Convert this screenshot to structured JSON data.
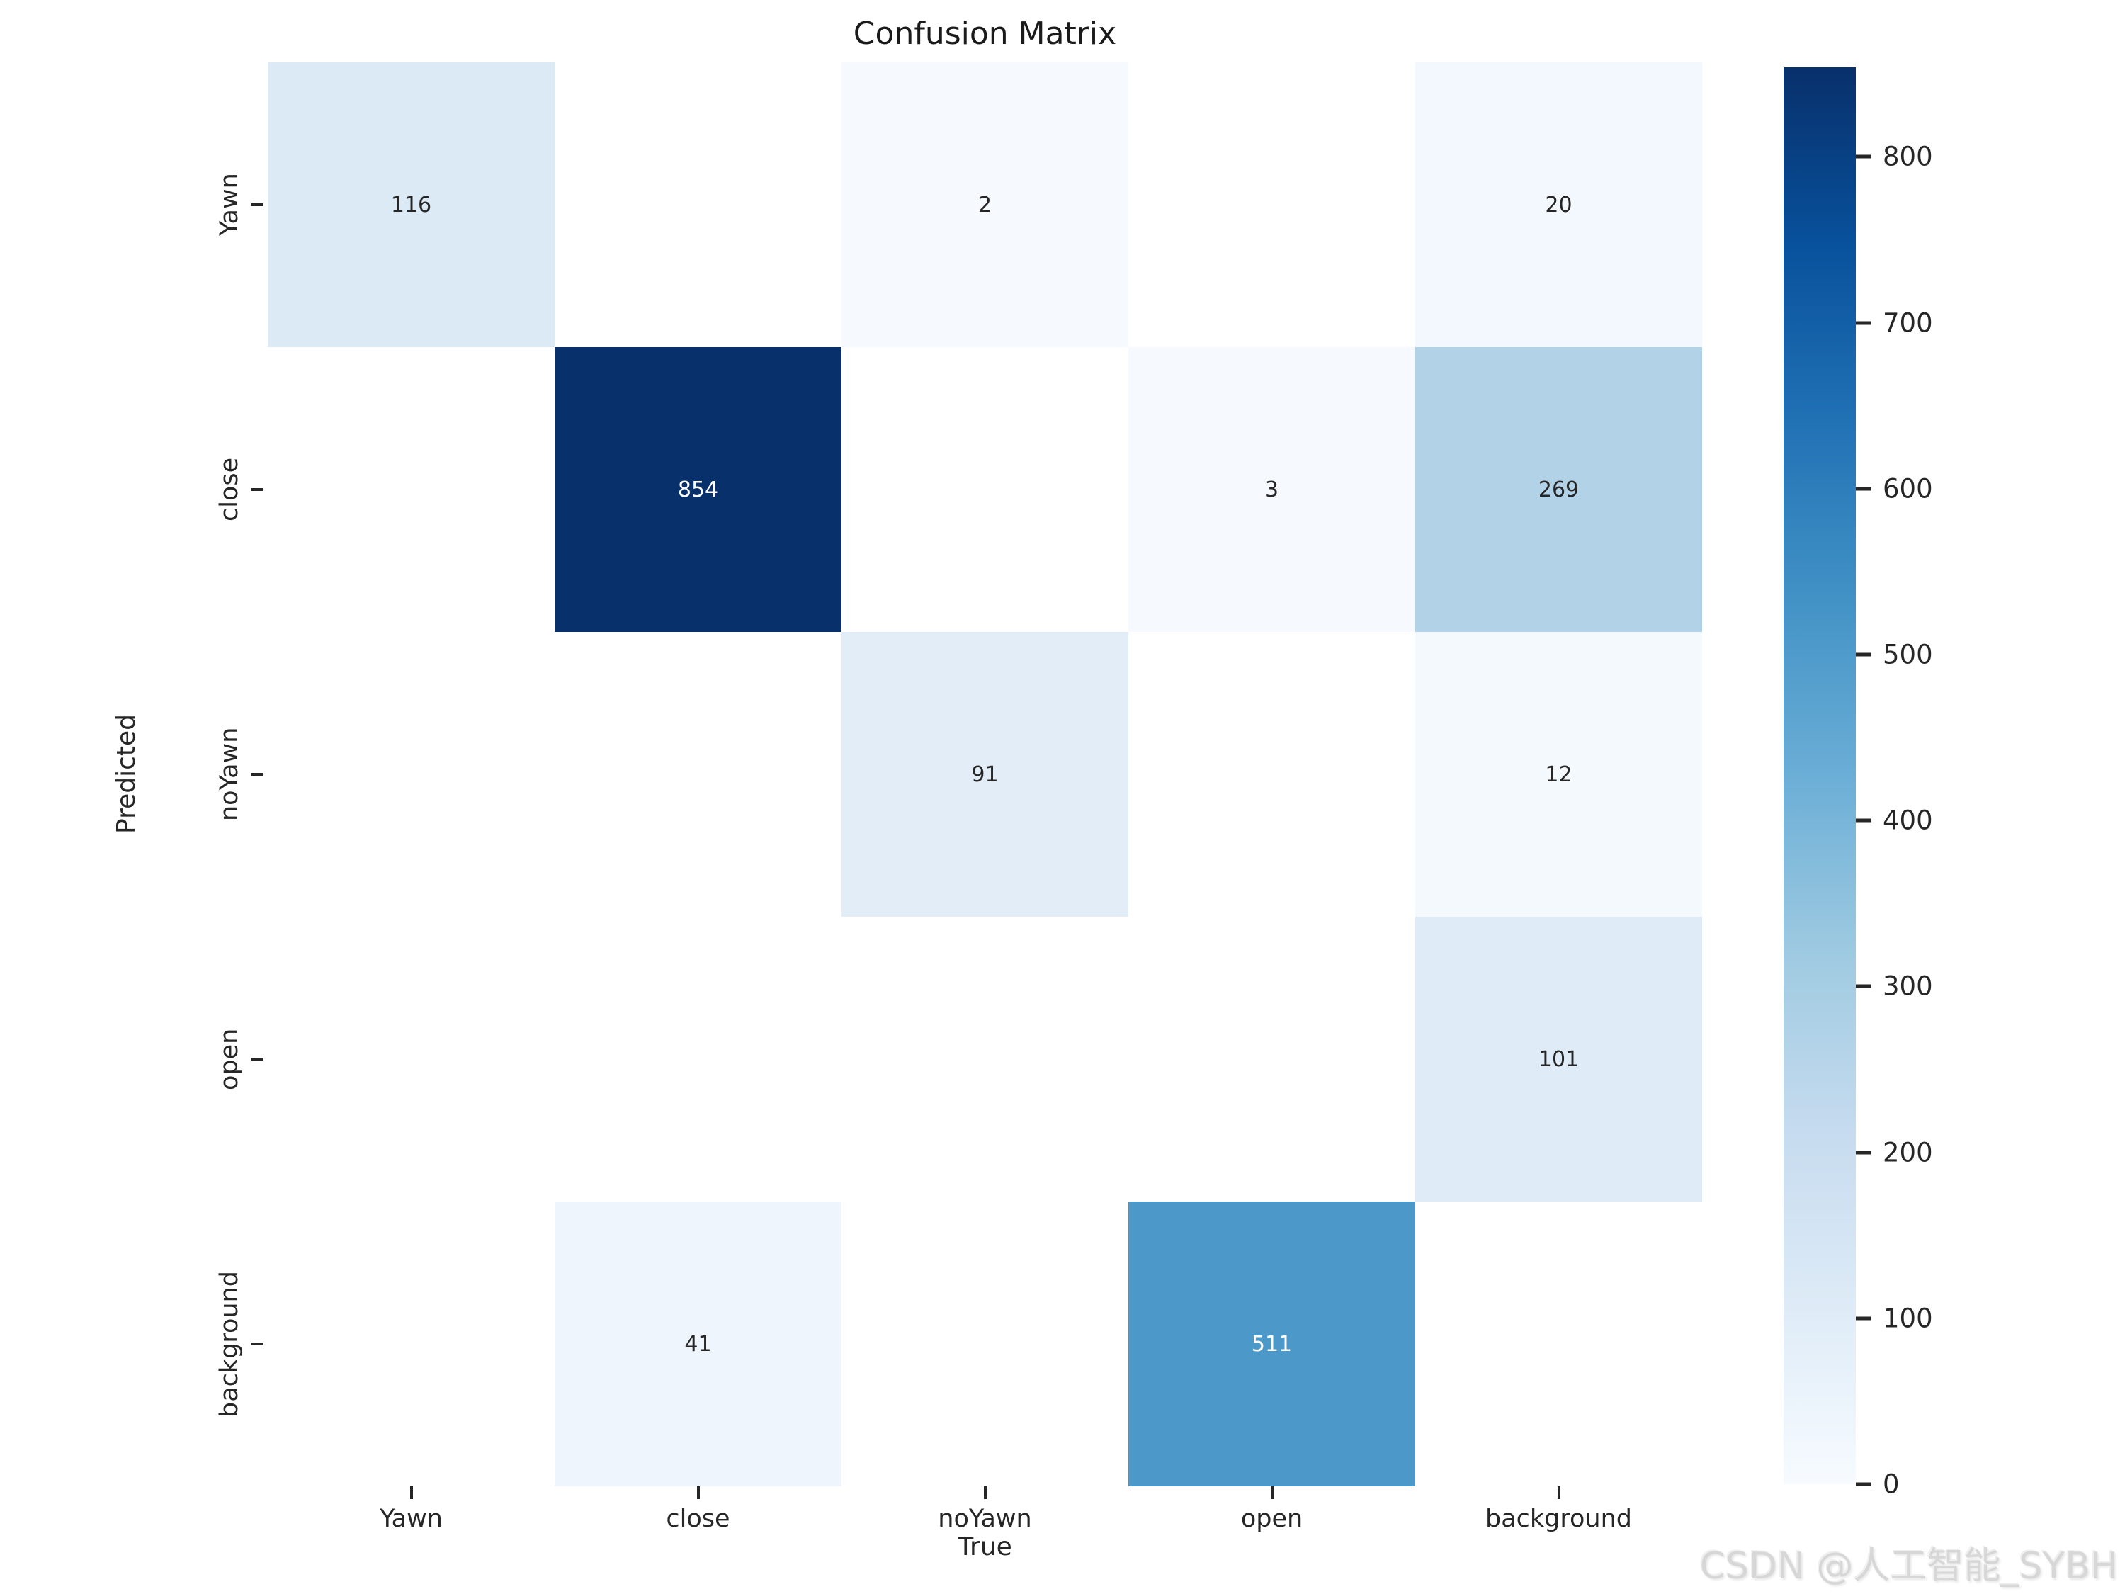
{
  "title": "Confusion Matrix",
  "axes": {
    "x_label": "True",
    "y_label": "Predicted",
    "x_ticks": [
      "Yawn",
      "close",
      "noYawn",
      "open",
      "background"
    ],
    "y_ticks": [
      "Yawn",
      "close",
      "noYawn",
      "open",
      "background"
    ]
  },
  "chart_data": {
    "type": "heatmap",
    "title": "Confusion Matrix",
    "xlabel": "True",
    "ylabel": "Predicted",
    "x_categories": [
      "Yawn",
      "close",
      "noYawn",
      "open",
      "background"
    ],
    "y_categories": [
      "Yawn",
      "close",
      "noYawn",
      "open",
      "background"
    ],
    "matrix": [
      [
        116,
        null,
        2,
        null,
        20
      ],
      [
        null,
        854,
        null,
        3,
        269
      ],
      [
        null,
        null,
        91,
        null,
        12
      ],
      [
        null,
        null,
        null,
        null,
        101
      ],
      [
        null,
        41,
        null,
        511,
        null
      ]
    ],
    "colormap": "Blues",
    "vmin": 0,
    "vmax": 854,
    "grid": false,
    "legend_position": "right",
    "colorbar_ticks": [
      0,
      100,
      200,
      300,
      400,
      500,
      600,
      700,
      800
    ],
    "cell_colors": [
      [
        "#dceaf6",
        "#ffffff",
        "#f6faff",
        "#ffffff",
        "#f3f8fe"
      ],
      [
        "#ffffff",
        "#08306b",
        "#ffffff",
        "#f6fafe",
        "#b1d2e7"
      ],
      [
        "#ffffff",
        "#ffffff",
        "#e2edf8",
        "#ffffff",
        "#f4f9fe"
      ],
      [
        "#ffffff",
        "#ffffff",
        "#ffffff",
        "#ffffff",
        "#dfecf7"
      ],
      [
        "#ffffff",
        "#eef5fc",
        "#ffffff",
        "#4b98c9",
        "#ffffff"
      ]
    ],
    "annotation_colors": {
      "dark": "#262626",
      "light": "#ffffff",
      "light_text_threshold": 500
    },
    "colorbar_gradient_bottom_to_top": [
      "#f7fbff",
      "#deebf7",
      "#c6dbef",
      "#9ecae1",
      "#6baed6",
      "#4292c6",
      "#2171b5",
      "#08519c",
      "#08306b"
    ]
  },
  "watermark": "CSDN @人工智能_SYBH",
  "colors": {
    "background": "#ffffff",
    "tick_color": "#262626",
    "title_color": "#1a1a1a",
    "watermark_color": "#d7d7d7"
  }
}
